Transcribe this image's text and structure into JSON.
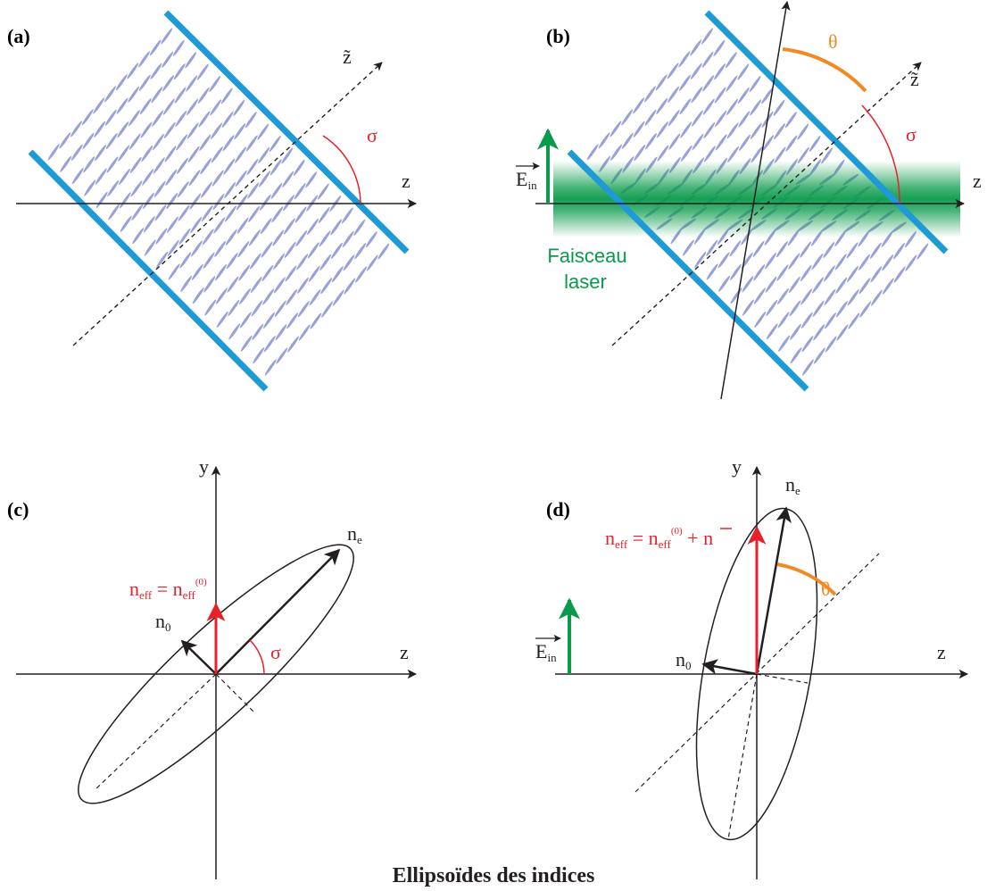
{
  "panels": {
    "a": {
      "tag": "(a)",
      "axis_z": "z",
      "axis_ztilde": "z̃",
      "angle": "σ"
    },
    "b": {
      "tag": "(b)",
      "axis_z": "z",
      "axis_ztilde": "z̃",
      "angle_sigma": "σ",
      "angle_theta": "θ",
      "field_label": "E",
      "field_sub": "in",
      "beam_label_1": "Faisceau",
      "beam_label_2": "laser"
    },
    "c": {
      "tag": "(c)",
      "axis_y": "y",
      "axis_z": "z",
      "ne": "n",
      "ne_sub": "e",
      "n0": "n",
      "n0_sub": "0",
      "neff": "n",
      "neff_sub": "eff",
      "eq": " = n",
      "eq_sub": "eff",
      "eq_sup": "(0)",
      "angle": "σ"
    },
    "d": {
      "tag": "(d)",
      "axis_y": "y",
      "axis_z": "z",
      "ne": "n",
      "ne_sub": "e",
      "n0": "n",
      "n0_sub": "0",
      "neff": "n",
      "neff_sub": "eff",
      "eq": " = n",
      "eq_sub": "eff",
      "eq_sup": "(0)",
      "plus": " + ",
      "nbar": "n",
      "angle": "θ",
      "field_label": "E",
      "field_sub": "in"
    }
  },
  "caption": "Ellipsoïdes des indices",
  "colors": {
    "cell_wall": "#1e9ad6",
    "molecule": "#9aa0d8",
    "axis": "#231f20",
    "sigma": "#e8202a",
    "theta": "#f08a24",
    "laser": "#0a9a4a",
    "neff": "#e8202a"
  }
}
